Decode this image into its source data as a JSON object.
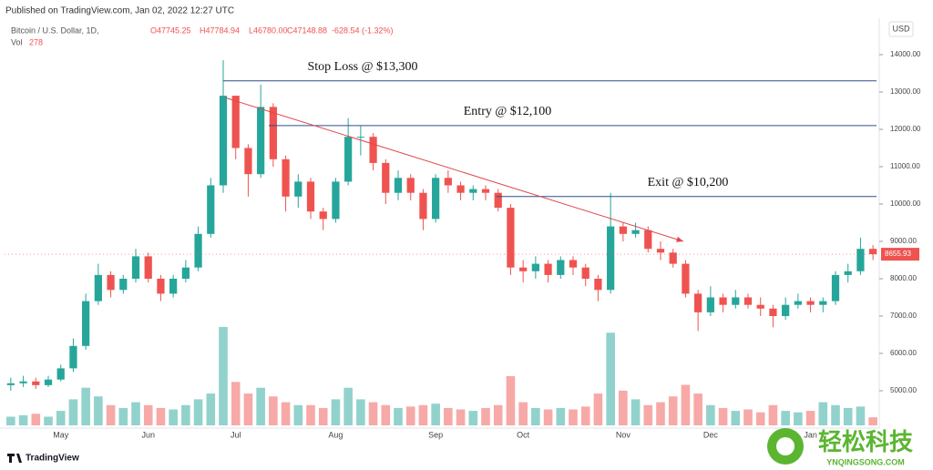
{
  "chart_data": {
    "type": "candlestick",
    "published": "Published on TradingView.com, Jan 02, 2022 12:27 UTC",
    "symbol": "Bitcoin / U.S. Dollar, 1D,",
    "ohlc_header": [
      "O47745.25",
      "H47784.94",
      "L46780.00",
      "C47148.88",
      "-628.54 (-1.32%)"
    ],
    "volume_label": "Vol",
    "currency": "USD",
    "footer": "TradingView",
    "watermark": {
      "title": "轻松科技",
      "site": "YNQINGSONG.COM"
    },
    "categories": [
      null,
      null,
      null,
      null,
      "May",
      null,
      null,
      null,
      null,
      null,
      null,
      "Jun",
      null,
      null,
      null,
      null,
      null,
      null,
      "Jul",
      null,
      null,
      null,
      null,
      null,
      null,
      null,
      "Aug",
      null,
      null,
      null,
      null,
      null,
      null,
      null,
      "Sep",
      null,
      null,
      null,
      null,
      null,
      null,
      "Oct",
      null,
      null,
      null,
      null,
      null,
      null,
      null,
      "Nov",
      null,
      null,
      null,
      null,
      null,
      null,
      "Dec",
      null,
      null,
      null,
      null,
      null,
      null,
      null,
      "Jan",
      null,
      null,
      null,
      null,
      null
    ],
    "open": [
      5150,
      5200,
      5250,
      5150,
      5300,
      5600,
      6200,
      7400,
      8100,
      7700,
      8000,
      8600,
      8000,
      7600,
      8000,
      8300,
      9200,
      10500,
      12900,
      11500,
      10800,
      12600,
      11200,
      10200,
      10600,
      9800,
      9600,
      10600,
      11800,
      11800,
      11100,
      10300,
      10700,
      10300,
      9600,
      10700,
      10500,
      10300,
      10400,
      10300,
      9900,
      8300,
      8200,
      8400,
      8100,
      8500,
      8300,
      8000,
      7700,
      9400,
      9200,
      9300,
      8800,
      8700,
      8400,
      7600,
      7100,
      7500,
      7300,
      7500,
      7300,
      7200,
      7000,
      7300,
      7400,
      7300,
      7400,
      8100,
      8200,
      8800
    ],
    "high": [
      5350,
      5400,
      5350,
      5400,
      5700,
      6400,
      7600,
      8400,
      8200,
      8100,
      8800,
      8700,
      8100,
      8100,
      8500,
      9400,
      10700,
      13850,
      12900,
      11600,
      13200,
      12700,
      11300,
      10800,
      10700,
      9900,
      10700,
      12300,
      12100,
      11900,
      11200,
      10900,
      10800,
      10400,
      10800,
      10900,
      10600,
      10500,
      10500,
      10400,
      10000,
      8500,
      8600,
      8500,
      8600,
      8600,
      8400,
      8100,
      10300,
      9500,
      9500,
      9400,
      9000,
      8800,
      8500,
      7700,
      7800,
      7600,
      7700,
      7600,
      7500,
      7300,
      7500,
      7600,
      7500,
      7500,
      8200,
      8400,
      9100,
      8900
    ],
    "low": [
      5000,
      5100,
      5050,
      5100,
      5250,
      5500,
      6100,
      7300,
      7500,
      7600,
      7900,
      7900,
      7400,
      7500,
      7900,
      8200,
      9100,
      10300,
      11200,
      10200,
      10700,
      11000,
      9800,
      9900,
      9600,
      9300,
      9500,
      10500,
      11300,
      10900,
      10000,
      10100,
      10100,
      9300,
      9500,
      10300,
      10100,
      10100,
      10100,
      9800,
      8100,
      7900,
      8000,
      7900,
      8000,
      8100,
      7800,
      7400,
      7600,
      9000,
      9100,
      8700,
      8500,
      8300,
      7500,
      6600,
      7000,
      7100,
      7200,
      7200,
      7000,
      6700,
      6900,
      7200,
      7100,
      7100,
      7300,
      7900,
      8100,
      8500
    ],
    "close": [
      5200,
      5250,
      5150,
      5300,
      5600,
      6200,
      7400,
      8100,
      7700,
      8000,
      8600,
      8000,
      7600,
      8000,
      8300,
      9200,
      10500,
      12900,
      11500,
      10800,
      12600,
      11200,
      10200,
      10600,
      9800,
      9600,
      10600,
      11800,
      11800,
      11100,
      10300,
      10700,
      10300,
      9600,
      10700,
      10500,
      10300,
      10400,
      10300,
      9900,
      8300,
      8200,
      8400,
      8100,
      8500,
      8300,
      8000,
      7700,
      9400,
      9200,
      9300,
      8800,
      8700,
      8400,
      7600,
      7100,
      7500,
      7300,
      7500,
      7300,
      7200,
      7000,
      7300,
      7400,
      7300,
      7400,
      8100,
      8200,
      8800,
      8655.93
    ],
    "volume": [
      300,
      350,
      400,
      300,
      500,
      900,
      1300,
      1000,
      700,
      600,
      800,
      700,
      600,
      550,
      700,
      900,
      1100,
      3400,
      1500,
      1100,
      1300,
      1000,
      800,
      700,
      700,
      600,
      900,
      1300,
      900,
      800,
      700,
      600,
      650,
      700,
      750,
      600,
      550,
      500,
      600,
      700,
      1700,
      800,
      600,
      550,
      600,
      550,
      650,
      1100,
      3200,
      1200,
      900,
      700,
      800,
      1000,
      1400,
      1100,
      700,
      600,
      500,
      550,
      450,
      700,
      500,
      450,
      500,
      800,
      700,
      600,
      650,
      278
    ],
    "volume_lim": [
      0,
      14000
    ],
    "up_color": "#26a69a",
    "down_color": "#ef5350",
    "ylim": [
      4073,
      14927
    ],
    "yticks": [
      {
        "value": 5000,
        "label": "5000.00"
      },
      {
        "value": 6000,
        "label": "6000.00"
      },
      {
        "value": 7000,
        "label": "7000.00"
      },
      {
        "value": 8000,
        "label": "8000.00"
      },
      {
        "value": 9000,
        "label": "9000.00"
      },
      {
        "value": 10000,
        "label": "10000.00"
      },
      {
        "value": 11000,
        "label": "11000.00"
      },
      {
        "value": 12000,
        "label": "12000.00"
      },
      {
        "value": 13000,
        "label": "13000.00"
      },
      {
        "value": 14000,
        "label": "14000.00"
      }
    ],
    "levels": [
      {
        "label": "Stop Loss @ $13,300",
        "value": 13300
      },
      {
        "label": "Entry @ $12,100",
        "value": 12100
      },
      {
        "label": "Exit @ $10,200",
        "value": 10200
      }
    ],
    "trend_line": {
      "values": [
        12850,
        9000
      ]
    }
  }
}
